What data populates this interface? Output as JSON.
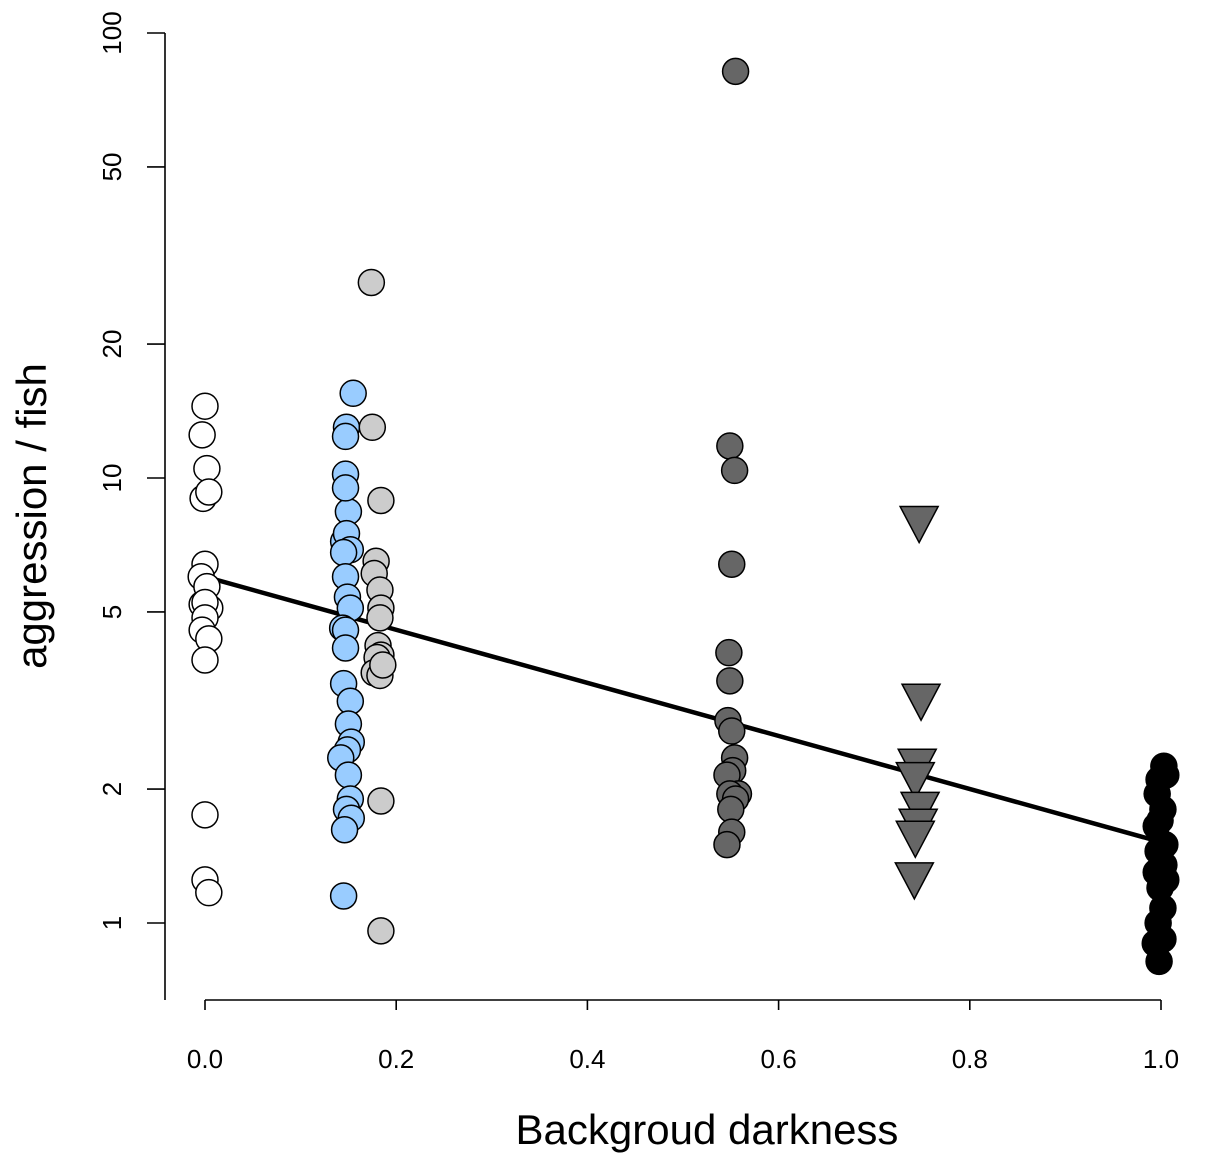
{
  "chart_data": {
    "type": "scatter",
    "title": "",
    "xlabel": "Backgroud darkness",
    "ylabel": "aggression / fish",
    "x_ticks": [
      {
        "value": 0.0,
        "label": "0.0"
      },
      {
        "value": 0.2,
        "label": "0.2"
      },
      {
        "value": 0.4,
        "label": "0.4"
      },
      {
        "value": 0.6,
        "label": "0.6"
      },
      {
        "value": 0.8,
        "label": "0.8"
      },
      {
        "value": 1.0,
        "label": "1.0"
      }
    ],
    "y_ticks": [
      {
        "value": 1,
        "label": "1"
      },
      {
        "value": 2,
        "label": "2"
      },
      {
        "value": 5,
        "label": "5"
      },
      {
        "value": 10,
        "label": "10"
      },
      {
        "value": 20,
        "label": "20"
      },
      {
        "value": 50,
        "label": "50"
      },
      {
        "value": 100,
        "label": "100"
      }
    ],
    "xlim": [
      -0.04,
      1.04
    ],
    "ylim": [
      0.8,
      100
    ],
    "y_scale": "log",
    "grid": false,
    "legend": "none",
    "series": [
      {
        "color": "#ffffff",
        "marker": "circle",
        "points": [
          [
            0.0,
            14.5
          ],
          [
            -0.003,
            12.5
          ],
          [
            0.002,
            10.5
          ],
          [
            -0.002,
            9.0
          ],
          [
            0.004,
            9.3
          ],
          [
            0.0,
            6.4
          ],
          [
            -0.004,
            6.0
          ],
          [
            0.002,
            5.7
          ],
          [
            -0.003,
            5.2
          ],
          [
            0.005,
            5.1
          ],
          [
            0.0,
            5.25
          ],
          [
            0.0,
            4.85
          ],
          [
            -0.003,
            4.55
          ],
          [
            0.004,
            4.35
          ],
          [
            0.0,
            3.9
          ],
          [
            0.0,
            1.75
          ],
          [
            0.0,
            1.25
          ],
          [
            0.004,
            1.17
          ]
        ]
      },
      {
        "color": "#99ccff",
        "marker": "circle",
        "points": [
          [
            0.155,
            15.5
          ],
          [
            0.148,
            13.0
          ],
          [
            0.147,
            12.4
          ],
          [
            0.147,
            10.2
          ],
          [
            0.15,
            8.4
          ],
          [
            0.147,
            9.5
          ],
          [
            0.145,
            7.2
          ],
          [
            0.148,
            7.5
          ],
          [
            0.152,
            6.9
          ],
          [
            0.145,
            6.8
          ],
          [
            0.147,
            6.0
          ],
          [
            0.149,
            5.4
          ],
          [
            0.152,
            5.1
          ],
          [
            0.144,
            4.6
          ],
          [
            0.147,
            4.55
          ],
          [
            0.147,
            4.15
          ],
          [
            0.145,
            3.45
          ],
          [
            0.152,
            3.15
          ],
          [
            0.15,
            2.8
          ],
          [
            0.153,
            2.55
          ],
          [
            0.149,
            2.45
          ],
          [
            0.142,
            2.35
          ],
          [
            0.15,
            2.15
          ],
          [
            0.152,
            1.9
          ],
          [
            0.148,
            1.8
          ],
          [
            0.153,
            1.72
          ],
          [
            0.146,
            1.62
          ],
          [
            0.145,
            1.15
          ]
        ]
      },
      {
        "color": "#cccccc",
        "marker": "circle",
        "points": [
          [
            0.174,
            27.5
          ],
          [
            0.175,
            13.0
          ],
          [
            0.184,
            8.9
          ],
          [
            0.179,
            6.5
          ],
          [
            0.177,
            6.1
          ],
          [
            0.183,
            5.6
          ],
          [
            0.184,
            5.1
          ],
          [
            0.183,
            4.85
          ],
          [
            0.181,
            4.2
          ],
          [
            0.184,
            4.0
          ],
          [
            0.18,
            3.95
          ],
          [
            0.177,
            3.65
          ],
          [
            0.183,
            3.6
          ],
          [
            0.186,
            3.8
          ],
          [
            0.184,
            1.88
          ],
          [
            0.184,
            0.96
          ]
        ]
      },
      {
        "color": "#666666",
        "marker": "circle",
        "points": [
          [
            0.555,
            82.0
          ],
          [
            0.549,
            11.8
          ],
          [
            0.554,
            10.4
          ],
          [
            0.551,
            6.4
          ],
          [
            0.548,
            4.05
          ],
          [
            0.549,
            3.5
          ],
          [
            0.547,
            2.85
          ],
          [
            0.551,
            2.7
          ],
          [
            0.554,
            2.35
          ],
          [
            0.552,
            2.2
          ],
          [
            0.546,
            2.15
          ],
          [
            0.558,
            1.95
          ],
          [
            0.549,
            1.95
          ],
          [
            0.555,
            1.9
          ],
          [
            0.55,
            1.8
          ],
          [
            0.551,
            1.6
          ],
          [
            0.546,
            1.5
          ]
        ]
      },
      {
        "color": "#666666",
        "marker": "triangle-down",
        "points": [
          [
            0.747,
            7.9
          ],
          [
            0.749,
            3.15
          ],
          [
            0.745,
            2.25
          ],
          [
            0.743,
            2.1
          ],
          [
            0.748,
            1.8
          ],
          [
            0.746,
            1.65
          ],
          [
            0.743,
            1.55
          ],
          [
            0.742,
            1.25
          ]
        ]
      },
      {
        "color": "#000000",
        "marker": "circle",
        "points": [
          [
            1.003,
            2.25
          ],
          [
            0.998,
            2.1
          ],
          [
            1.005,
            2.15
          ],
          [
            0.996,
            1.95
          ],
          [
            1.002,
            1.8
          ],
          [
            0.999,
            1.7
          ],
          [
            0.995,
            1.65
          ],
          [
            1.004,
            1.5
          ],
          [
            0.997,
            1.45
          ],
          [
            1.003,
            1.35
          ],
          [
            0.995,
            1.3
          ],
          [
            1.005,
            1.25
          ],
          [
            0.999,
            1.2
          ],
          [
            1.002,
            1.08
          ],
          [
            0.997,
            1.0
          ],
          [
            0.994,
            0.9
          ],
          [
            1.002,
            0.92
          ],
          [
            0.998,
            0.82
          ]
        ]
      }
    ],
    "fit_line": {
      "x": [
        0.0,
        1.0
      ],
      "y": [
        6.0,
        1.52
      ]
    }
  }
}
